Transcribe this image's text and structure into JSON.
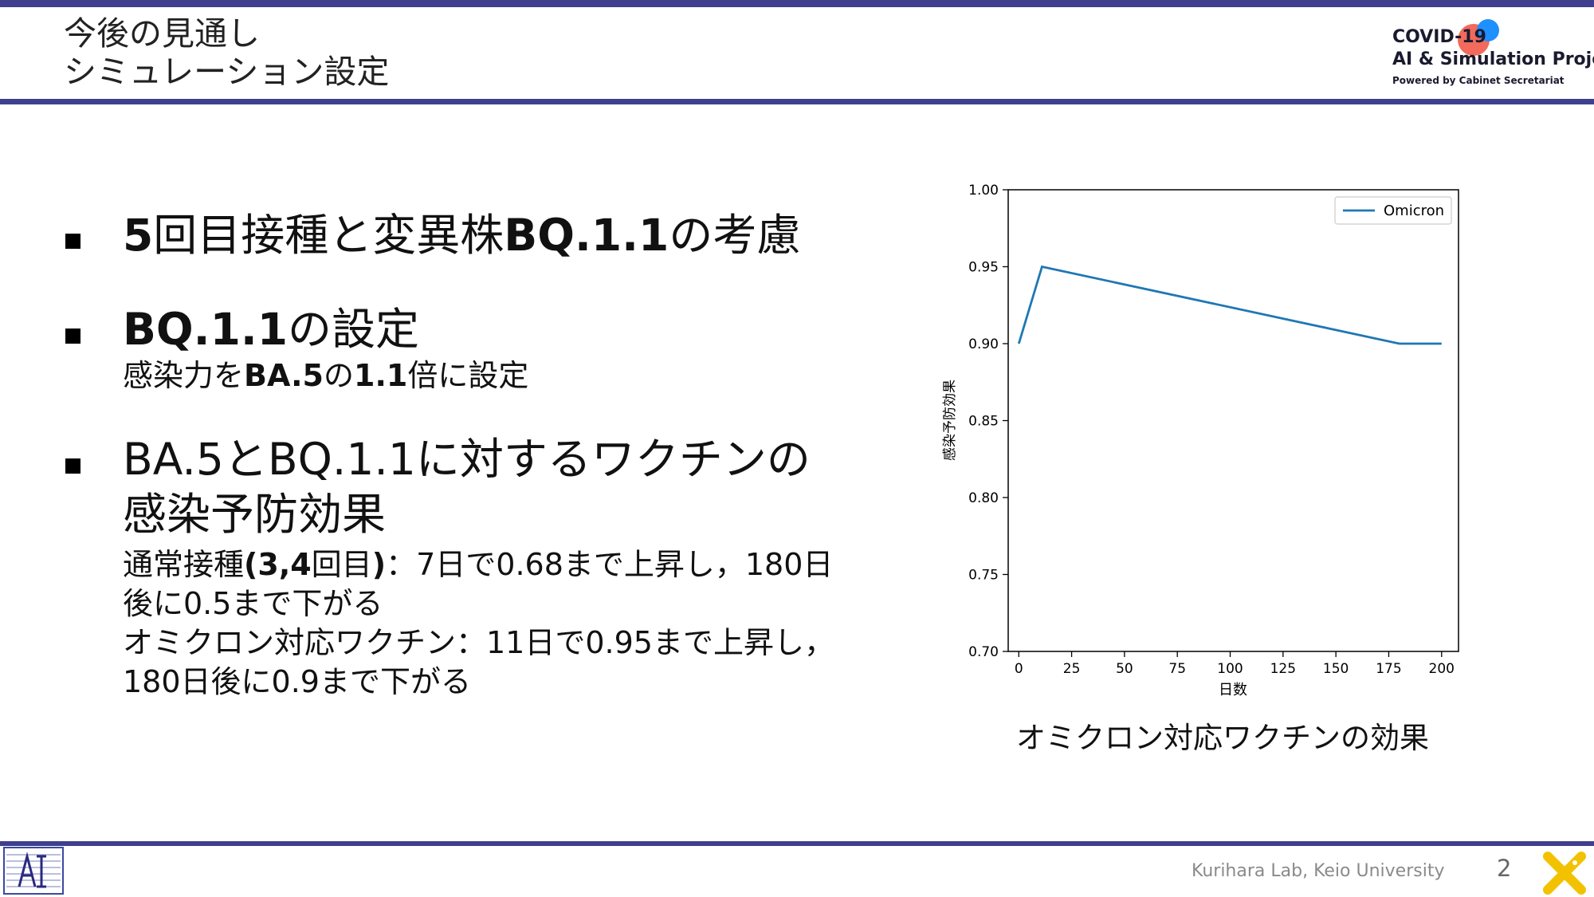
{
  "header": {
    "title_line1": "今後の見通し",
    "title_line2": "シミュレーション設定"
  },
  "logo": {
    "line1": "COVID-19",
    "line2": "AI & Simulation Project",
    "line3": "Powered by Cabinet Secretariat",
    "colors": {
      "red": "#f05a4a",
      "blue": "#1e90ff"
    }
  },
  "bullets": [
    {
      "head_a": "5",
      "head_b": "回目接種と変異株",
      "head_c": "BQ.1.1",
      "head_d": "の考慮"
    },
    {
      "head_a": "BQ.1.1",
      "head_b": "の設定",
      "sub_a": "感染力を",
      "sub_b": "BA.5",
      "sub_c": "の",
      "sub_d": "1.1",
      "sub_e": "倍に設定"
    },
    {
      "head_line1": "BA.5とBQ.1.1に対するワクチンの",
      "head_line2": "感染予防効果",
      "sub1_a": "通常接種",
      "sub1_b": "(3,4",
      "sub1_c": "回目",
      "sub1_d": ")",
      "sub1_e": "：7日で0.68まで上昇し，180日",
      "sub2": "後に0.5まで下がる",
      "sub3": "オミクロン対応ワクチン：11日で0.95まで上昇し，",
      "sub4": "180日後に0.9まで下がる"
    }
  ],
  "chart_data": {
    "type": "line",
    "xlabel": "日数",
    "ylabel": "感染予防効果",
    "xlim": [
      -5,
      208
    ],
    "ylim": [
      0.7,
      1.0
    ],
    "xticks": [
      0,
      25,
      50,
      75,
      100,
      125,
      150,
      175,
      200
    ],
    "yticks": [
      "0.70",
      "0.75",
      "0.80",
      "0.85",
      "0.90",
      "0.95",
      "1.00"
    ],
    "grid": false,
    "legend_position": "top-right",
    "series": [
      {
        "name": "Omicron",
        "color": "#1f77b4",
        "x": [
          0,
          11,
          180,
          200
        ],
        "y": [
          0.9,
          0.95,
          0.9,
          0.9
        ]
      }
    ]
  },
  "caption": "オミクロン対応ワクチンの効果",
  "footer": {
    "lab": "Kurihara Lab, Keio University",
    "page": "2"
  },
  "theme": {
    "bar_color": "#3f3f8f",
    "accent_yellow": "#f2c200"
  }
}
